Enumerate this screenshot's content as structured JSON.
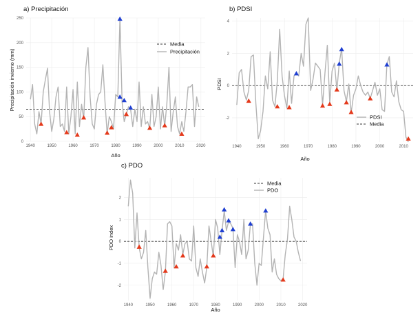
{
  "colors": {
    "line": "#b3b3b3",
    "mean": "#333333",
    "grid": "#ececec",
    "marker_low": "#e4391b",
    "marker_high": "#1f3fd1"
  },
  "chart_data": [
    {
      "id": "a",
      "type": "line",
      "title": "a) Precipitación",
      "xlabel": "Año",
      "ylabel": "Precipitación invierno (mm)",
      "xlim": [
        1938,
        2022
      ],
      "ylim": [
        0,
        250
      ],
      "xticks": [
        1940,
        1950,
        1960,
        1970,
        1980,
        1990,
        2000,
        2010,
        2020
      ],
      "yticks": [
        0,
        50,
        100,
        150,
        200,
        250
      ],
      "mean": 65,
      "legend": {
        "position": "top-right",
        "mean_label": "Media",
        "series_label": "Precipitación",
        "order": [
          "mean",
          "series"
        ]
      },
      "x": [
        1940,
        1941,
        1942,
        1943,
        1944,
        1945,
        1946,
        1947,
        1948,
        1949,
        1950,
        1951,
        1952,
        1953,
        1954,
        1955,
        1956,
        1957,
        1958,
        1959,
        1960,
        1961,
        1962,
        1963,
        1964,
        1965,
        1966,
        1967,
        1968,
        1969,
        1970,
        1971,
        1972,
        1973,
        1974,
        1975,
        1976,
        1977,
        1978,
        1979,
        1980,
        1981,
        1982,
        1983,
        1984,
        1985,
        1986,
        1987,
        1988,
        1989,
        1990,
        1991,
        1992,
        1993,
        1994,
        1995,
        1996,
        1997,
        1998,
        1999,
        2000,
        2001,
        2002,
        2003,
        2004,
        2005,
        2006,
        2007,
        2008,
        2009,
        2010,
        2011,
        2012,
        2013,
        2014,
        2015,
        2016,
        2017,
        2018,
        2019
      ],
      "y": [
        85,
        115,
        35,
        15,
        60,
        35,
        100,
        125,
        148,
        60,
        20,
        45,
        90,
        110,
        30,
        35,
        20,
        110,
        15,
        50,
        105,
        15,
        120,
        30,
        75,
        45,
        150,
        190,
        90,
        35,
        25,
        75,
        95,
        100,
        155,
        80,
        15,
        50,
        40,
        25,
        95,
        90,
        250,
        80,
        40,
        55,
        70,
        65,
        30,
        65,
        40,
        120,
        30,
        70,
        35,
        40,
        25,
        95,
        30,
        50,
        110,
        25,
        70,
        30,
        75,
        150,
        20,
        60,
        90,
        30,
        15,
        40,
        20,
        60,
        110,
        110,
        115,
        30,
        90,
        70
      ],
      "markers_low": [
        [
          1945,
          35
        ],
        [
          1957,
          18
        ],
        [
          1962,
          13
        ],
        [
          1965,
          48
        ],
        [
          1976,
          17
        ],
        [
          1978,
          28
        ],
        [
          1985,
          55
        ],
        [
          1996,
          27
        ],
        [
          2003,
          32
        ],
        [
          2011,
          15
        ]
      ],
      "markers_high": [
        [
          1982,
          248
        ],
        [
          1982,
          90
        ],
        [
          1984,
          83
        ],
        [
          1987,
          68
        ]
      ]
    },
    {
      "id": "b",
      "type": "line",
      "title": "b) PDSI",
      "xlabel": "Año",
      "ylabel": "PDSI",
      "xlim": [
        1938,
        2014
      ],
      "ylim": [
        -3.5,
        4.2
      ],
      "xticks": [
        1940,
        1950,
        1960,
        1970,
        1980,
        1990,
        2000,
        2010
      ],
      "yticks": [
        -2,
        0,
        2,
        4
      ],
      "mean": 0,
      "legend": {
        "position": "bottom-right",
        "mean_label": "Media",
        "series_label": "PDSI",
        "order": [
          "series",
          "mean"
        ]
      },
      "x": [
        1940,
        1941,
        1942,
        1943,
        1944,
        1945,
        1946,
        1947,
        1948,
        1949,
        1950,
        1951,
        1952,
        1953,
        1954,
        1955,
        1956,
        1957,
        1958,
        1959,
        1960,
        1961,
        1962,
        1963,
        1964,
        1965,
        1966,
        1967,
        1968,
        1969,
        1970,
        1971,
        1972,
        1973,
        1974,
        1975,
        1976,
        1977,
        1978,
        1979,
        1980,
        1981,
        1982,
        1983,
        1984,
        1985,
        1986,
        1987,
        1988,
        1989,
        1990,
        1991,
        1992,
        1993,
        1994,
        1995,
        1996,
        1997,
        1998,
        1999,
        2000,
        2001,
        2002,
        2003,
        2004,
        2005,
        2006,
        2007,
        2008,
        2009,
        2010,
        2011,
        2012
      ],
      "y": [
        -1.2,
        0.8,
        1.0,
        -0.4,
        -0.9,
        -0.3,
        1.8,
        1.9,
        -1.1,
        -3.3,
        -2.8,
        -1.6,
        0.6,
        -0.2,
        2.1,
        -0.9,
        -1.3,
        0.3,
        3.5,
        0.6,
        -0.6,
        -1.4,
        0.9,
        -1.1,
        0.6,
        0.8,
        0.6,
        2.0,
        1.2,
        3.8,
        4.2,
        -0.3,
        0.4,
        1.4,
        1.2,
        1.0,
        -1.2,
        0.8,
        2.5,
        -1.1,
        0.9,
        1.4,
        -0.3,
        1.4,
        2.3,
        -0.3,
        -1.0,
        0.1,
        -1.7,
        -0.6,
        -0.2,
        0.6,
        0.0,
        -0.4,
        -0.6,
        -0.4,
        -0.8,
        -0.3,
        0.2,
        -0.6,
        -0.2,
        -1.5,
        -1.6,
        1.3,
        1.8,
        -0.4,
        -0.7,
        0.3,
        -1.0,
        -1.5,
        -1.6,
        -3.2,
        -3.5
      ],
      "markers_low": [
        [
          1945,
          -0.95
        ],
        [
          1957,
          -1.3
        ],
        [
          1962,
          -1.35
        ],
        [
          1976,
          -1.25
        ],
        [
          1979,
          -1.15
        ],
        [
          1982,
          -0.25
        ],
        [
          1986,
          -1.05
        ],
        [
          1988,
          -1.65
        ],
        [
          1996,
          -0.8
        ],
        [
          2012,
          -3.3
        ]
      ],
      "markers_high": [
        [
          1965,
          0.75
        ],
        [
          1983,
          1.35
        ],
        [
          1984,
          2.25
        ],
        [
          2003,
          1.3
        ]
      ]
    },
    {
      "id": "c",
      "type": "line",
      "title": "c) PDO",
      "xlabel": "Año",
      "ylabel": "PDO index",
      "xlim": [
        1938,
        2022
      ],
      "ylim": [
        -2.7,
        2.9
      ],
      "xticks": [
        1940,
        1950,
        1960,
        1970,
        1980,
        1990,
        2000,
        2010,
        2020
      ],
      "yticks": [
        -2,
        -1,
        0,
        1,
        2
      ],
      "mean": 0,
      "legend": {
        "position": "top-right",
        "mean_label": "Media",
        "series_label": "PDO",
        "order": [
          "mean",
          "series"
        ]
      },
      "x": [
        1940,
        1941,
        1942,
        1943,
        1944,
        1945,
        1946,
        1947,
        1948,
        1949,
        1950,
        1951,
        1952,
        1953,
        1954,
        1955,
        1956,
        1957,
        1958,
        1959,
        1960,
        1961,
        1962,
        1963,
        1964,
        1965,
        1966,
        1967,
        1968,
        1969,
        1970,
        1971,
        1972,
        1973,
        1974,
        1975,
        1976,
        1977,
        1978,
        1979,
        1980,
        1981,
        1982,
        1983,
        1984,
        1985,
        1986,
        1987,
        1988,
        1989,
        1990,
        1991,
        1992,
        1993,
        1994,
        1995,
        1996,
        1997,
        1998,
        1999,
        2000,
        2001,
        2002,
        2003,
        2004,
        2005,
        2006,
        2007,
        2008,
        2009,
        2010,
        2011,
        2012,
        2013,
        2014,
        2015,
        2016,
        2017,
        2018,
        2019
      ],
      "y": [
        1.6,
        2.8,
        2.2,
        -0.3,
        1.3,
        -0.3,
        -0.8,
        -0.5,
        0.5,
        -1.2,
        -2.6,
        -1.7,
        -1.4,
        -1.5,
        -0.5,
        -1.1,
        -2.2,
        -1.4,
        0.8,
        0.9,
        0.7,
        -1.2,
        -0.1,
        -0.4,
        0.3,
        -0.6,
        -0.1,
        0.0,
        -0.8,
        -0.9,
        0.7,
        -1.2,
        -1.6,
        -0.8,
        -1.4,
        -1.9,
        -1.2,
        0.7,
        0.0,
        -0.7,
        1.0,
        0.6,
        -0.6,
        0.5,
        1.4,
        0.5,
        0.9,
        0.8,
        0.6,
        -1.2,
        0.3,
        0.0,
        -0.6,
        1.0,
        -0.8,
        -0.4,
        0.8,
        0.8,
        -1.0,
        -2.0,
        -1.0,
        -1.1,
        0.2,
        1.4,
        0.6,
        0.3,
        -1.4,
        -0.8,
        -1.5,
        -1.7,
        -1.8,
        -1.7,
        -0.6,
        0.1,
        1.6,
        1.0,
        0.2,
        0.0,
        -0.5,
        -0.9
      ],
      "markers_low": [
        [
          1945,
          -0.25
        ],
        [
          1957,
          -1.35
        ],
        [
          1962,
          -1.15
        ],
        [
          1965,
          -0.65
        ],
        [
          1976,
          -1.15
        ],
        [
          1979,
          -0.65
        ],
        [
          2011,
          -1.75
        ]
      ],
      "markers_high": [
        [
          1982,
          0.2
        ],
        [
          1983,
          0.5
        ],
        [
          1984,
          1.45
        ],
        [
          1986,
          0.95
        ],
        [
          1988,
          0.55
        ],
        [
          1996,
          0.8
        ],
        [
          2003,
          1.4
        ]
      ]
    }
  ]
}
